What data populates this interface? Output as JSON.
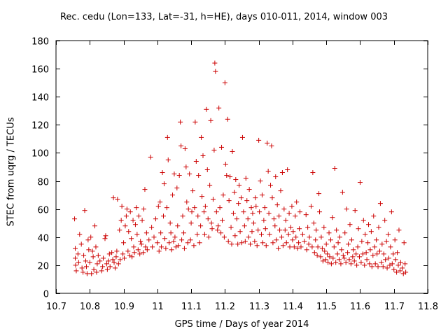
{
  "chart_data": {
    "type": "scatter",
    "title": "Rec. cedu (Lon=133, Lat=-31, h=HE), days 010-011, 2014, window 003",
    "xlabel": "GPS time / Days of year 2014",
    "ylabel": "STEC from uqrg / TECUs",
    "xlim": [
      10.7,
      11.8
    ],
    "ylim": [
      0,
      180
    ],
    "x_ticks": [
      "10.7",
      "10.8",
      "10.9",
      "11",
      "11.1",
      "11.2",
      "11.3",
      "11.4",
      "11.5",
      "11.6",
      "11.7",
      "11.8"
    ],
    "y_ticks": [
      "0",
      "20",
      "40",
      "60",
      "80",
      "100",
      "120",
      "140",
      "160",
      "180"
    ],
    "grid": false,
    "marker": "+",
    "color": "#cc0000",
    "points": [
      [
        10.755,
        53
      ],
      [
        10.757,
        32
      ],
      [
        10.757,
        25
      ],
      [
        10.758,
        20
      ],
      [
        10.76,
        16
      ],
      [
        10.765,
        28
      ],
      [
        10.767,
        22
      ],
      [
        10.77,
        42
      ],
      [
        10.775,
        35
      ],
      [
        10.777,
        18
      ],
      [
        10.78,
        15
      ],
      [
        10.782,
        27
      ],
      [
        10.785,
        59
      ],
      [
        10.788,
        23
      ],
      [
        10.79,
        19
      ],
      [
        10.792,
        14
      ],
      [
        10.795,
        38
      ],
      [
        10.797,
        31
      ],
      [
        10.8,
        22
      ],
      [
        10.803,
        40
      ],
      [
        10.805,
        14
      ],
      [
        10.808,
        30
      ],
      [
        10.81,
        26
      ],
      [
        10.812,
        17
      ],
      [
        10.815,
        48
      ],
      [
        10.818,
        33
      ],
      [
        10.82,
        15
      ],
      [
        10.822,
        21
      ],
      [
        10.825,
        27
      ],
      [
        10.83,
        23
      ],
      [
        10.835,
        16
      ],
      [
        10.838,
        19
      ],
      [
        10.84,
        25
      ],
      [
        10.845,
        39
      ],
      [
        10.847,
        41
      ],
      [
        10.85,
        21
      ],
      [
        10.852,
        17
      ],
      [
        10.855,
        23
      ],
      [
        10.858,
        28
      ],
      [
        10.86,
        19
      ],
      [
        10.865,
        29
      ],
      [
        10.868,
        24
      ],
      [
        10.87,
        68
      ],
      [
        10.872,
        22
      ],
      [
        10.875,
        18
      ],
      [
        10.878,
        26
      ],
      [
        10.88,
        30
      ],
      [
        10.882,
        67
      ],
      [
        10.885,
        21
      ],
      [
        10.888,
        45
      ],
      [
        10.89,
        24
      ],
      [
        10.893,
        52
      ],
      [
        10.895,
        62
      ],
      [
        10.898,
        28
      ],
      [
        10.9,
        36
      ],
      [
        10.902,
        25
      ],
      [
        10.905,
        48
      ],
      [
        10.908,
        55
      ],
      [
        10.91,
        60
      ],
      [
        10.913,
        30
      ],
      [
        10.915,
        44
      ],
      [
        10.918,
        27
      ],
      [
        10.92,
        58
      ],
      [
        10.923,
        39
      ],
      [
        10.925,
        26
      ],
      [
        10.928,
        52
      ],
      [
        10.93,
        33
      ],
      [
        10.932,
        29
      ],
      [
        10.935,
        49
      ],
      [
        10.938,
        61
      ],
      [
        10.94,
        42
      ],
      [
        10.943,
        31
      ],
      [
        10.945,
        55
      ],
      [
        10.948,
        28
      ],
      [
        10.95,
        37
      ],
      [
        10.953,
        35
      ],
      [
        10.955,
        52
      ],
      [
        10.958,
        29
      ],
      [
        10.96,
        60
      ],
      [
        10.963,
        74
      ],
      [
        10.965,
        33
      ],
      [
        10.968,
        43
      ],
      [
        10.97,
        31
      ],
      [
        10.975,
        38
      ],
      [
        10.98,
        97
      ],
      [
        10.983,
        47
      ],
      [
        10.985,
        33
      ],
      [
        10.99,
        40
      ],
      [
        10.995,
        53
      ],
      [
        11.0,
        36
      ],
      [
        11.003,
        62
      ],
      [
        11.005,
        30
      ],
      [
        11.008,
        65
      ],
      [
        11.01,
        43
      ],
      [
        11.012,
        33
      ],
      [
        11.015,
        86
      ],
      [
        11.018,
        55
      ],
      [
        11.02,
        78
      ],
      [
        11.022,
        39
      ],
      [
        11.025,
        32
      ],
      [
        11.028,
        61
      ],
      [
        11.03,
        111
      ],
      [
        11.032,
        95
      ],
      [
        11.035,
        36
      ],
      [
        11.038,
        50
      ],
      [
        11.04,
        43
      ],
      [
        11.042,
        31
      ],
      [
        11.045,
        70
      ],
      [
        11.048,
        37
      ],
      [
        11.05,
        85
      ],
      [
        11.052,
        40
      ],
      [
        11.055,
        33
      ],
      [
        11.058,
        75
      ],
      [
        11.06,
        48
      ],
      [
        11.062,
        34
      ],
      [
        11.065,
        84
      ],
      [
        11.068,
        122
      ],
      [
        11.07,
        105
      ],
      [
        11.072,
        38
      ],
      [
        11.075,
        55
      ],
      [
        11.078,
        43
      ],
      [
        11.08,
        32
      ],
      [
        11.082,
        103
      ],
      [
        11.085,
        90
      ],
      [
        11.087,
        65
      ],
      [
        11.09,
        36
      ],
      [
        11.092,
        60
      ],
      [
        11.095,
        85
      ],
      [
        11.098,
        38
      ],
      [
        11.1,
        50
      ],
      [
        11.102,
        58
      ],
      [
        11.105,
        73
      ],
      [
        11.108,
        34
      ],
      [
        11.11,
        61
      ],
      [
        11.112,
        122
      ],
      [
        11.115,
        94
      ],
      [
        11.118,
        42
      ],
      [
        11.12,
        55
      ],
      [
        11.122,
        84
      ],
      [
        11.125,
        36
      ],
      [
        11.128,
        48
      ],
      [
        11.13,
        111
      ],
      [
        11.132,
        69
      ],
      [
        11.135,
        98
      ],
      [
        11.138,
        58
      ],
      [
        11.14,
        42
      ],
      [
        11.142,
        62
      ],
      [
        11.145,
        131
      ],
      [
        11.148,
        88
      ],
      [
        11.15,
        53
      ],
      [
        11.152,
        40
      ],
      [
        11.155,
        77
      ],
      [
        11.158,
        123
      ],
      [
        11.16,
        50
      ],
      [
        11.162,
        46
      ],
      [
        11.165,
        67
      ],
      [
        11.168,
        102
      ],
      [
        11.17,
        164
      ],
      [
        11.172,
        158
      ],
      [
        11.175,
        58
      ],
      [
        11.178,
        45
      ],
      [
        11.18,
        48
      ],
      [
        11.182,
        132
      ],
      [
        11.185,
        61
      ],
      [
        11.188,
        43
      ],
      [
        11.19,
        104
      ],
      [
        11.192,
        52
      ],
      [
        11.195,
        70
      ],
      [
        11.198,
        40
      ],
      [
        11.2,
        150
      ],
      [
        11.202,
        92
      ],
      [
        11.205,
        84
      ],
      [
        11.208,
        124
      ],
      [
        11.21,
        37
      ],
      [
        11.212,
        66
      ],
      [
        11.215,
        83
      ],
      [
        11.218,
        47
      ],
      [
        11.22,
        35
      ],
      [
        11.222,
        101
      ],
      [
        11.225,
        57
      ],
      [
        11.228,
        72
      ],
      [
        11.23,
        41
      ],
      [
        11.232,
        81
      ],
      [
        11.235,
        53
      ],
      [
        11.238,
        35
      ],
      [
        11.24,
        64
      ],
      [
        11.242,
        77
      ],
      [
        11.245,
        44
      ],
      [
        11.248,
        68
      ],
      [
        11.25,
        36
      ],
      [
        11.252,
        111
      ],
      [
        11.255,
        58
      ],
      [
        11.258,
        48
      ],
      [
        11.26,
        37
      ],
      [
        11.262,
        82
      ],
      [
        11.265,
        66
      ],
      [
        11.268,
        53
      ],
      [
        11.27,
        40
      ],
      [
        11.272,
        74
      ],
      [
        11.275,
        35
      ],
      [
        11.278,
        61
      ],
      [
        11.28,
        44
      ],
      [
        11.282,
        57
      ],
      [
        11.285,
        50
      ],
      [
        11.288,
        37
      ],
      [
        11.29,
        68
      ],
      [
        11.292,
        62
      ],
      [
        11.295,
        34
      ],
      [
        11.298,
        45
      ],
      [
        11.3,
        109
      ],
      [
        11.302,
        58
      ],
      [
        11.305,
        80
      ],
      [
        11.308,
        42
      ],
      [
        11.31,
        70
      ],
      [
        11.312,
        36
      ],
      [
        11.315,
        52
      ],
      [
        11.318,
        61
      ],
      [
        11.32,
        46
      ],
      [
        11.322,
        34
      ],
      [
        11.325,
        107
      ],
      [
        11.328,
        87
      ],
      [
        11.33,
        57
      ],
      [
        11.332,
        42
      ],
      [
        11.335,
        77
      ],
      [
        11.338,
        105
      ],
      [
        11.34,
        68
      ],
      [
        11.342,
        36
      ],
      [
        11.345,
        53
      ],
      [
        11.348,
        48
      ],
      [
        11.35,
        83
      ],
      [
        11.352,
        38
      ],
      [
        11.355,
        63
      ],
      [
        11.358,
        32
      ],
      [
        11.36,
        55
      ],
      [
        11.362,
        45
      ],
      [
        11.365,
        73
      ],
      [
        11.368,
        40
      ],
      [
        11.37,
        86
      ],
      [
        11.372,
        34
      ],
      [
        11.375,
        60
      ],
      [
        11.378,
        45
      ],
      [
        11.38,
        52
      ],
      [
        11.382,
        36
      ],
      [
        11.385,
        88
      ],
      [
        11.388,
        42
      ],
      [
        11.39,
        57
      ],
      [
        11.392,
        33
      ],
      [
        11.395,
        47
      ],
      [
        11.398,
        62
      ],
      [
        11.4,
        38
      ],
      [
        11.402,
        44
      ],
      [
        11.405,
        33
      ],
      [
        11.408,
        55
      ],
      [
        11.41,
        40
      ],
      [
        11.412,
        65
      ],
      [
        11.415,
        32
      ],
      [
        11.418,
        36
      ],
      [
        11.42,
        46
      ],
      [
        11.422,
        58
      ],
      [
        11.425,
        33
      ],
      [
        11.43,
        42
      ],
      [
        11.435,
        37
      ],
      [
        11.44,
        56
      ],
      [
        11.442,
        31
      ],
      [
        11.445,
        47
      ],
      [
        11.448,
        35
      ],
      [
        11.45,
        40
      ],
      [
        11.455,
        62
      ],
      [
        11.458,
        33
      ],
      [
        11.46,
        86
      ],
      [
        11.463,
        50
      ],
      [
        11.465,
        29
      ],
      [
        11.468,
        38
      ],
      [
        11.47,
        45
      ],
      [
        11.473,
        27
      ],
      [
        11.475,
        33
      ],
      [
        11.478,
        71
      ],
      [
        11.48,
        58
      ],
      [
        11.483,
        26
      ],
      [
        11.485,
        40
      ],
      [
        11.488,
        32
      ],
      [
        11.49,
        23
      ],
      [
        11.493,
        47
      ],
      [
        11.495,
        30
      ],
      [
        11.498,
        24
      ],
      [
        11.5,
        35
      ],
      [
        11.503,
        28
      ],
      [
        11.505,
        22
      ],
      [
        11.508,
        43
      ],
      [
        11.51,
        26
      ],
      [
        11.513,
        38
      ],
      [
        11.515,
        21
      ],
      [
        11.518,
        54
      ],
      [
        11.52,
        25
      ],
      [
        11.523,
        33
      ],
      [
        11.525,
        89
      ],
      [
        11.528,
        22
      ],
      [
        11.53,
        45
      ],
      [
        11.533,
        28
      ],
      [
        11.535,
        36
      ],
      [
        11.538,
        24
      ],
      [
        11.54,
        40
      ],
      [
        11.543,
        21
      ],
      [
        11.545,
        31
      ],
      [
        11.548,
        72
      ],
      [
        11.55,
        27
      ],
      [
        11.553,
        25
      ],
      [
        11.555,
        43
      ],
      [
        11.558,
        22
      ],
      [
        11.56,
        60
      ],
      [
        11.563,
        29
      ],
      [
        11.565,
        35
      ],
      [
        11.568,
        24
      ],
      [
        11.57,
        49
      ],
      [
        11.573,
        21
      ],
      [
        11.575,
        38
      ],
      [
        11.578,
        26
      ],
      [
        11.58,
        31
      ],
      [
        11.583,
        23
      ],
      [
        11.585,
        59
      ],
      [
        11.588,
        28
      ],
      [
        11.59,
        20
      ],
      [
        11.593,
        33
      ],
      [
        11.595,
        46
      ],
      [
        11.598,
        26
      ],
      [
        11.6,
        79
      ],
      [
        11.603,
        22
      ],
      [
        11.605,
        37
      ],
      [
        11.608,
        28
      ],
      [
        11.61,
        52
      ],
      [
        11.613,
        20
      ],
      [
        11.615,
        42
      ],
      [
        11.618,
        29
      ],
      [
        11.62,
        24
      ],
      [
        11.623,
        36
      ],
      [
        11.625,
        49
      ],
      [
        11.628,
        21
      ],
      [
        11.63,
        31
      ],
      [
        11.633,
        44
      ],
      [
        11.635,
        19
      ],
      [
        11.638,
        27
      ],
      [
        11.64,
        55
      ],
      [
        11.643,
        33
      ],
      [
        11.645,
        21
      ],
      [
        11.648,
        38
      ],
      [
        11.65,
        28
      ],
      [
        11.653,
        19
      ],
      [
        11.655,
        47
      ],
      [
        11.658,
        30
      ],
      [
        11.66,
        64
      ],
      [
        11.663,
        22
      ],
      [
        11.665,
        35
      ],
      [
        11.668,
        19
      ],
      [
        11.67,
        28
      ],
      [
        11.673,
        52
      ],
      [
        11.675,
        24
      ],
      [
        11.678,
        37
      ],
      [
        11.68,
        18
      ],
      [
        11.683,
        42
      ],
      [
        11.685,
        25
      ],
      [
        11.688,
        20
      ],
      [
        11.69,
        33
      ],
      [
        11.693,
        58
      ],
      [
        11.695,
        21
      ],
      [
        11.698,
        28
      ],
      [
        11.7,
        17
      ],
      [
        11.703,
        38
      ],
      [
        11.705,
        24
      ],
      [
        11.708,
        15
      ],
      [
        11.71,
        29
      ],
      [
        11.713,
        20
      ],
      [
        11.715,
        45
      ],
      [
        11.718,
        16
      ],
      [
        11.72,
        22
      ],
      [
        11.725,
        18
      ],
      [
        11.728,
        14
      ],
      [
        11.73,
        36
      ],
      [
        11.733,
        21
      ],
      [
        11.735,
        15
      ]
    ]
  }
}
